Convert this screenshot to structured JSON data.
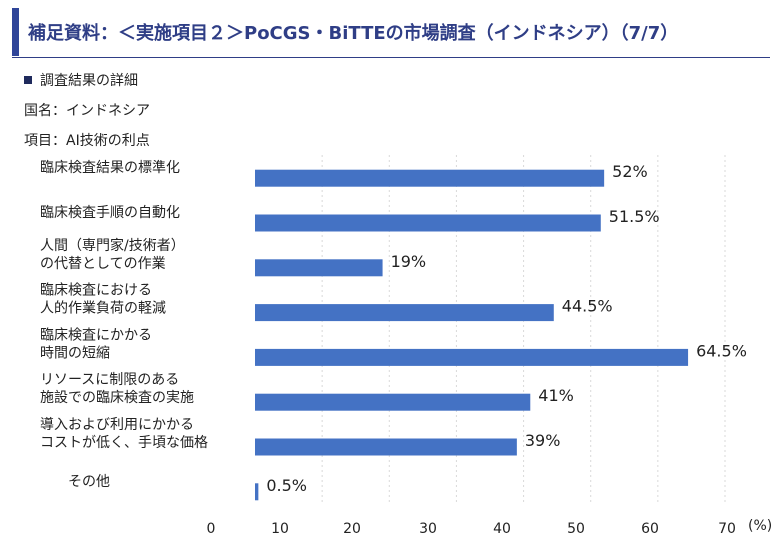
{
  "header": {
    "title": "補足資料：＜実施項目２＞PoCGS・BiTTEの市場調査（インドネシア）（7/7）"
  },
  "section": {
    "heading": "調査結果の詳細",
    "country": "国名：インドネシア",
    "item": "項目：AI技術の利点"
  },
  "colors": {
    "accent": "#2f4599",
    "bar": "#4472c4"
  },
  "chart_data": {
    "type": "bar",
    "orientation": "horizontal",
    "categories": [
      [
        "臨床検査結果の標準化"
      ],
      [
        "臨床検査手順の自動化"
      ],
      [
        "人間（専門家/技術者）",
        "の代替としての作業"
      ],
      [
        "臨床検査における",
        "人的作業負荷の軽減"
      ],
      [
        "臨床検査にかかる",
        "時間の短縮"
      ],
      [
        "リソースに制限のある",
        "施設での臨床検査の実施"
      ],
      [
        "導入および利用にかかる",
        "コストが低く、手頃な価格"
      ],
      [
        "その他"
      ]
    ],
    "values": [
      52,
      51.5,
      19,
      44.5,
      64.5,
      41,
      39,
      0.5
    ],
    "value_labels": [
      "52%",
      "51.5%",
      "19%",
      "44.5%",
      "64.5%",
      "41%",
      "39%",
      "0.5%"
    ],
    "xticks": [
      "0",
      "10",
      "20",
      "30",
      "40",
      "50",
      "60",
      "70"
    ],
    "xunit": "(%)",
    "xlim": [
      0,
      70
    ],
    "grid": true
  }
}
